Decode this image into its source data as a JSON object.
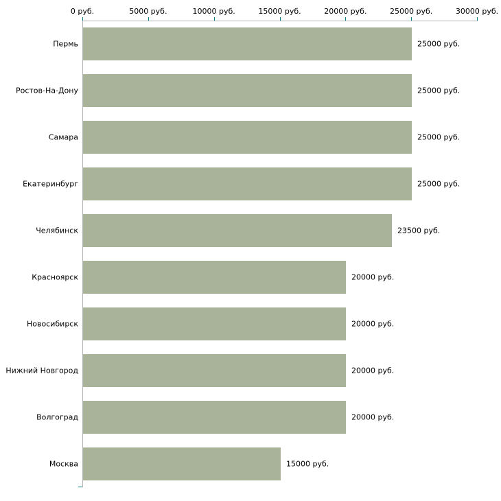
{
  "chart_data": {
    "type": "bar",
    "orientation": "horizontal",
    "title": "",
    "xlabel": "",
    "ylabel": "",
    "categories": [
      "Пермь",
      "Ростов-На-Дону",
      "Самара",
      "Екатеринбург",
      "Челябинск",
      "Красноярск",
      "Новосибирск",
      "Нижний Новгород",
      "Волгоград",
      "Москва"
    ],
    "values": [
      25000,
      25000,
      25000,
      25000,
      23500,
      20000,
      20000,
      20000,
      20000,
      15000
    ],
    "value_labels": [
      "25000 руб.",
      "25000 руб.",
      "25000 руб.",
      "25000 руб.",
      "23500 руб.",
      "20000 руб.",
      "20000 руб.",
      "20000 руб.",
      "20000 руб.",
      "15000 руб."
    ],
    "x_ticks": [
      0,
      5000,
      10000,
      15000,
      20000,
      25000,
      30000
    ],
    "x_tick_labels": [
      "0 руб.",
      "5000 руб.",
      "10000 руб.",
      "15000 руб.",
      "20000 руб.",
      "25000 руб.",
      "30000 руб."
    ],
    "xlim": [
      0,
      30000
    ],
    "grid": false,
    "legend": "none",
    "colors": {
      "bar": "#a9b39a",
      "axis": "#b5b5b5",
      "tick": "#008080",
      "text": "#000000",
      "background": "#ffffff"
    }
  }
}
